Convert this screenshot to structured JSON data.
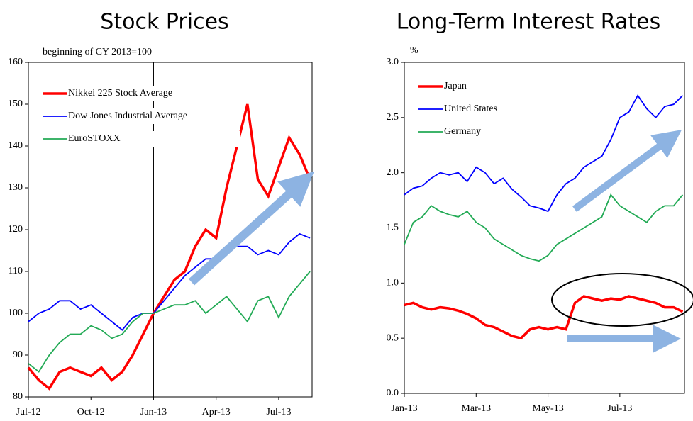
{
  "chart_data": [
    {
      "type": "line",
      "title": "Stock Prices",
      "annotation": "beginning of CY 2013=100",
      "x": [
        0,
        0.5,
        1,
        1.5,
        2,
        2.5,
        3,
        3.5,
        4,
        4.5,
        5,
        5.5,
        6,
        6.5,
        7,
        7.5,
        8,
        8.5,
        9,
        9.5,
        10,
        10.5,
        11,
        11.5,
        12,
        12.5,
        13,
        13.5
      ],
      "series": [
        {
          "name": "Nikkei 225 Stock Average",
          "color": "#ff0000",
          "values": [
            87,
            84,
            82,
            86,
            87,
            86,
            85,
            87,
            84,
            86,
            90,
            95,
            100,
            104,
            108,
            110,
            116,
            120,
            118,
            130,
            140,
            150,
            132,
            128,
            135,
            142,
            138,
            132
          ]
        },
        {
          "name": "Dow Jones Industrial Average",
          "color": "#0000ff",
          "values": [
            98,
            100,
            101,
            103,
            103,
            101,
            102,
            100,
            98,
            96,
            99,
            100,
            100,
            103,
            106,
            109,
            111,
            113,
            113,
            115,
            116,
            116,
            114,
            115,
            114,
            117,
            119,
            118
          ]
        },
        {
          "name": "EuroSTOXX",
          "color": "#22aa55",
          "values": [
            88,
            86,
            90,
            93,
            95,
            95,
            97,
            96,
            94,
            95,
            98,
            100,
            100,
            101,
            102,
            102,
            103,
            100,
            102,
            104,
            101,
            98,
            103,
            104,
            99,
            104,
            107,
            110
          ]
        }
      ],
      "xlim": [
        0,
        13.6
      ],
      "xticks": [
        {
          "value": 0,
          "label": "Jul-12"
        },
        {
          "value": 3,
          "label": "Oct-12"
        },
        {
          "value": 6,
          "label": "Jan-13"
        },
        {
          "value": 9,
          "label": "Apr-13"
        },
        {
          "value": 12,
          "label": "Jul-13"
        }
      ],
      "ylim": [
        80,
        160
      ],
      "yticks": [
        80,
        90,
        100,
        110,
        120,
        130,
        140,
        150,
        160
      ]
    },
    {
      "type": "line",
      "title": "Long-Term Interest Rates",
      "annotation": "%",
      "x": [
        0,
        0.25,
        0.5,
        0.75,
        1,
        1.25,
        1.5,
        1.75,
        2,
        2.25,
        2.5,
        2.75,
        3,
        3.25,
        3.5,
        3.75,
        4,
        4.25,
        4.5,
        4.75,
        5,
        5.25,
        5.5,
        5.75,
        6,
        6.25,
        6.5,
        6.75,
        7,
        7.25,
        7.5,
        7.75
      ],
      "series": [
        {
          "name": "Japan",
          "color": "#ff0000",
          "values": [
            0.8,
            0.82,
            0.78,
            0.76,
            0.78,
            0.77,
            0.75,
            0.72,
            0.68,
            0.62,
            0.6,
            0.56,
            0.52,
            0.5,
            0.58,
            0.6,
            0.58,
            0.6,
            0.58,
            0.82,
            0.88,
            0.86,
            0.84,
            0.86,
            0.85,
            0.88,
            0.86,
            0.84,
            0.82,
            0.78,
            0.78,
            0.74
          ]
        },
        {
          "name": "United States",
          "color": "#0000ff",
          "values": [
            1.8,
            1.86,
            1.88,
            1.95,
            2.0,
            1.98,
            2.0,
            1.92,
            2.05,
            2.0,
            1.9,
            1.95,
            1.85,
            1.78,
            1.7,
            1.68,
            1.65,
            1.8,
            1.9,
            1.95,
            2.05,
            2.1,
            2.15,
            2.3,
            2.5,
            2.55,
            2.7,
            2.58,
            2.5,
            2.6,
            2.62,
            2.7
          ]
        },
        {
          "name": "Germany",
          "color": "#22aa55",
          "values": [
            1.35,
            1.55,
            1.6,
            1.7,
            1.65,
            1.62,
            1.6,
            1.65,
            1.55,
            1.5,
            1.4,
            1.35,
            1.3,
            1.25,
            1.22,
            1.2,
            1.25,
            1.35,
            1.4,
            1.45,
            1.5,
            1.55,
            1.6,
            1.8,
            1.7,
            1.65,
            1.6,
            1.55,
            1.65,
            1.7,
            1.7,
            1.8
          ]
        }
      ],
      "xlim": [
        0,
        7.8
      ],
      "xticks": [
        {
          "value": 0,
          "label": "Jan-13"
        },
        {
          "value": 2,
          "label": "Mar-13"
        },
        {
          "value": 4,
          "label": "May-13"
        },
        {
          "value": 6,
          "label": "Jul-13"
        }
      ],
      "ylim": [
        0,
        3
      ],
      "yticks": [
        {
          "value": 0,
          "label": "0.0"
        },
        0.5,
        {
          "value": 1,
          "label": "1.0"
        },
        1.5,
        {
          "value": 2,
          "label": "2.0"
        },
        2.5,
        {
          "value": 3,
          "label": "3.0"
        }
      ]
    }
  ]
}
